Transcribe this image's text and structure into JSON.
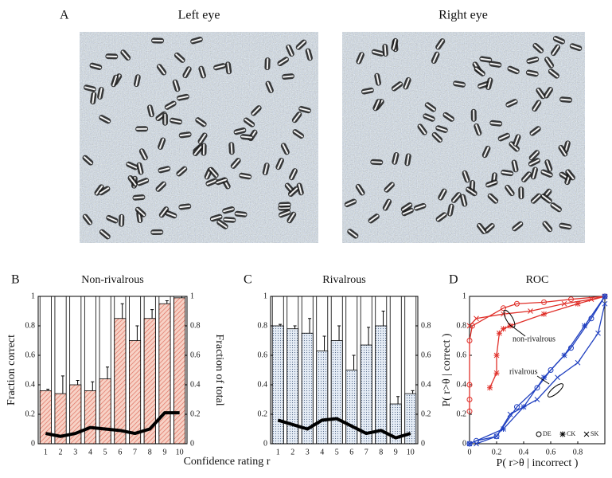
{
  "panel_a": {
    "label": "A",
    "left_title": "Left eye",
    "right_title": "Right eye"
  },
  "chart_data": [
    {
      "type": "bar",
      "panel_label": "B",
      "title": "Non-rivalrous",
      "y_label": "Fraction correct",
      "y2_label": "Fraction of total",
      "x_label": "Confidence rating r",
      "categories": [
        "1",
        "2",
        "3",
        "4",
        "5",
        "6",
        "7",
        "8",
        "9",
        "10"
      ],
      "series": [
        {
          "type": "bar",
          "color": "#d9534a",
          "values": [
            0.36,
            0.34,
            0.4,
            0.36,
            0.44,
            0.85,
            0.7,
            0.85,
            0.95,
            0.99
          ],
          "errors": [
            0.01,
            0.12,
            0.03,
            0.06,
            0.08,
            0.1,
            0.1,
            0.06,
            0.02,
            0.01
          ]
        },
        {
          "type": "line",
          "color": "#000000",
          "axis": "y2",
          "values": [
            0.07,
            0.05,
            0.07,
            0.11,
            0.1,
            0.09,
            0.07,
            0.1,
            0.21,
            0.21
          ]
        }
      ],
      "ylim": [
        0,
        1
      ],
      "yticks": [
        0,
        0.2,
        0.4,
        0.6,
        0.8,
        1
      ],
      "y2lim": [
        0,
        1
      ],
      "y2ticks": [
        0,
        0.2,
        0.4,
        0.6,
        0.8,
        1
      ]
    },
    {
      "type": "bar",
      "panel_label": "C",
      "title": "Rivalrous",
      "categories": [
        "1",
        "2",
        "3",
        "4",
        "5",
        "6",
        "7",
        "8",
        "9",
        "10"
      ],
      "series": [
        {
          "type": "bar",
          "color": "#5a6f8f",
          "values": [
            0.8,
            0.78,
            0.75,
            0.63,
            0.7,
            0.5,
            0.67,
            0.8,
            0.27,
            0.34
          ],
          "errors": [
            0.01,
            0.02,
            0.1,
            0.1,
            0.1,
            0.1,
            0.12,
            0.1,
            0.05,
            0.02
          ]
        },
        {
          "type": "line",
          "color": "#000000",
          "axis": "y2",
          "values": [
            0.16,
            0.13,
            0.1,
            0.16,
            0.17,
            0.12,
            0.07,
            0.09,
            0.04,
            0.07
          ]
        }
      ],
      "ylim": [
        0,
        1
      ],
      "yticks": [
        0,
        0.2,
        0.4,
        0.6,
        0.8,
        1
      ],
      "y2lim": [
        0,
        1
      ],
      "y2ticks": [
        0,
        0.2,
        0.4,
        0.6,
        0.8
      ]
    },
    {
      "type": "line",
      "panel_label": "D",
      "title": "ROC",
      "y_label": "P( r>θ | correct )",
      "x_label": "P( r>θ | incorrect )",
      "annotations": [
        "non-rivalrous",
        "rivalrous"
      ],
      "legend": [
        {
          "name": "DE",
          "marker": "circle"
        },
        {
          "name": "CK",
          "marker": "star"
        },
        {
          "name": "SK",
          "marker": "cross"
        }
      ],
      "series": [
        {
          "color": "#e0302a",
          "marker": "circle",
          "x": [
            0,
            0,
            0,
            0,
            0.02,
            0.25,
            0.35,
            0.55,
            0.75,
            1
          ],
          "values": [
            0.22,
            0.3,
            0.4,
            0.7,
            0.8,
            0.92,
            0.95,
            0.96,
            0.98,
            1
          ]
        },
        {
          "color": "#e0302a",
          "marker": "star",
          "x": [
            0.15,
            0.2,
            0.2,
            0.22,
            0.25,
            0.3,
            0.55,
            0.8,
            1
          ],
          "values": [
            0.38,
            0.48,
            0.6,
            0.75,
            0.78,
            0.8,
            0.88,
            0.95,
            1
          ]
        },
        {
          "color": "#e0302a",
          "marker": "cross",
          "x": [
            0,
            0.05,
            0.25,
            0.45,
            0.7,
            0.9,
            1
          ],
          "values": [
            0.8,
            0.85,
            0.88,
            0.9,
            0.95,
            0.98,
            1
          ]
        },
        {
          "color": "#2040c0",
          "marker": "circle",
          "x": [
            0,
            0.05,
            0.2,
            0.35,
            0.5,
            0.6,
            0.75,
            0.9,
            1
          ],
          "values": [
            0,
            0.02,
            0.05,
            0.25,
            0.38,
            0.5,
            0.65,
            0.85,
            1
          ]
        },
        {
          "color": "#2040c0",
          "marker": "star",
          "x": [
            0,
            0.25,
            0.4,
            0.55,
            0.7,
            0.85,
            1
          ],
          "values": [
            0,
            0.1,
            0.25,
            0.45,
            0.6,
            0.8,
            1
          ]
        },
        {
          "color": "#2040c0",
          "marker": "cross",
          "x": [
            0.05,
            0.2,
            0.3,
            0.5,
            0.65,
            0.8,
            0.95,
            1
          ],
          "values": [
            0,
            0.05,
            0.2,
            0.3,
            0.45,
            0.55,
            0.75,
            0.95
          ]
        }
      ],
      "xlim": [
        0,
        1
      ],
      "xticks": [
        0,
        0.2,
        0.4,
        0.6,
        0.8
      ],
      "ylim": [
        0,
        1
      ],
      "yticks": [
        0,
        0.2,
        0.4,
        0.6,
        0.8,
        1
      ]
    }
  ]
}
